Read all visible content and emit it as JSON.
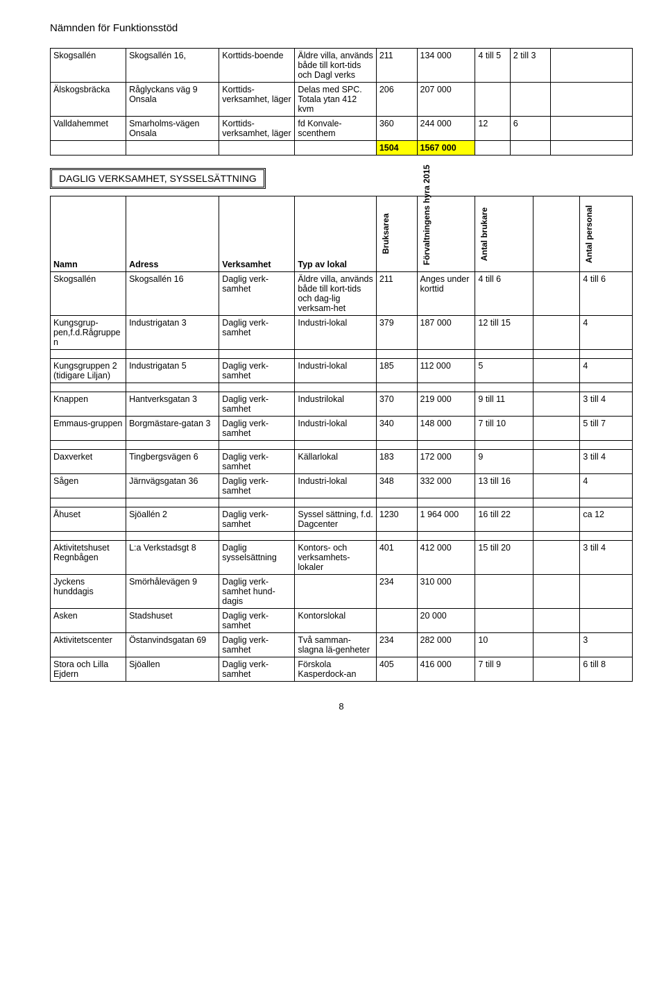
{
  "pageTitle": "Nämnden för Funktionsstöd",
  "pageNumber": "8",
  "colors": {
    "highlight": "#ffff00"
  },
  "table1": {
    "rows": [
      {
        "c0": "Skogsallén",
        "c1": "Skogsallén 16,",
        "c2": "Korttids-boende",
        "c3": "Äldre villa, används både till kort-tids och Dagl verks",
        "c4": "211",
        "c5": "134 000",
        "c6": "4 till 5",
        "c7": "2 till 3",
        "c8": ""
      },
      {
        "c0": "Älskogsbräcka",
        "c1": "Råglyckans väg 9 Onsala",
        "c2": "Korttids-verksamhet, läger",
        "c3": "Delas med SPC. Totala ytan 412 kvm",
        "c4": "206",
        "c5": "207 000",
        "c6": "",
        "c7": "",
        "c8": ""
      },
      {
        "c0": "Valldahemmet",
        "c1": "Smarholms-vägen Onsala",
        "c2": "Korttids-verksamhet, läger",
        "c3": "fd Konvale-scenthem",
        "c4": "360",
        "c5": "244 000",
        "c6": "12",
        "c7": "6",
        "c8": ""
      }
    ],
    "totals": {
      "c4": "1504",
      "c5": "1567 000"
    }
  },
  "sectionTitle": "DAGLIG VERKSAMHET, SYSSELSÄTTNING",
  "table2": {
    "headers": {
      "namn": "Namn",
      "adress": "Adress",
      "verksamhet": "Verksamhet",
      "typ": "Typ av lokal",
      "bruksarea": "Bruksarea",
      "hyra": "Förvaltningens hyra 2015",
      "brukare": "Antal brukare",
      "personal": "Antal personal"
    },
    "groups": [
      [
        {
          "c0": "Skogsallén",
          "c1": "Skogsallén 16",
          "c2": "Daglig verk-samhet",
          "c3": "Äldre villa, används både till kort-tids och dag-lig verksam-het",
          "c4": "211",
          "c5": "Anges under korttid",
          "c6": "4 till 6",
          "c7": "",
          "c8": "4 till 6"
        },
        {
          "c0": "Kungsgrup-pen,f.d.Rågruppen",
          "c1": "Industrigatan 3",
          "c2": "Daglig verk-samhet",
          "c3": "Industri-lokal",
          "c4": "379",
          "c5": "187 000",
          "c6": "12 till 15",
          "c7": "",
          "c8": "4"
        }
      ],
      [
        {
          "c0": "Kungsgruppen 2 (tidigare Liljan)",
          "c1": "Industrigatan 5",
          "c2": "Daglig verk-samhet",
          "c3": "Industri-lokal",
          "c4": "185",
          "c5": "112 000",
          "c6": "5",
          "c7": "",
          "c8": "4"
        }
      ],
      [
        {
          "c0": "Knappen",
          "c1": "Hantverksgatan 3",
          "c2": "Daglig verk-samhet",
          "c3": "Industrilokal",
          "c4": "370",
          "c5": "219 000",
          "c6": "9 till 11",
          "c7": "",
          "c8": "3 till 4"
        },
        {
          "c0": "Emmaus-gruppen",
          "c1": "Borgmästare-gatan 3",
          "c2": "Daglig verk-samhet",
          "c3": "Industri-lokal",
          "c4": "340",
          "c5": "148 000",
          "c6": "7 till 10",
          "c7": "",
          "c8": "5 till 7"
        }
      ],
      [
        {
          "c0": "Daxverket",
          "c1": "Tingbergsvägen 6",
          "c2": "Daglig verk-samhet",
          "c3": "Källarlokal",
          "c4": "183",
          "c5": "172 000",
          "c6": "9",
          "c7": "",
          "c8": "3 till 4"
        },
        {
          "c0": "Sågen",
          "c1": "Järnvägsgatan 36",
          "c2": "Daglig verk-samhet",
          "c3": "Industri-lokal",
          "c4": "348",
          "c5": "332 000",
          "c6": "13 till 16",
          "c7": "",
          "c8": "4"
        }
      ],
      [
        {
          "c0": "Åhuset",
          "c1": "Sjöallén 2",
          "c2": "Daglig verk-samhet",
          "c3": "Syssel sättning, f.d. Dagcenter",
          "c4": "1230",
          "c5": "1 964 000",
          "c6": "16 till 22",
          "c7": "",
          "c8": "ca 12"
        }
      ],
      [
        {
          "c0": "Aktivitetshuset Regnbågen",
          "c1": "L:a Verkstadsgt 8",
          "c2": "Daglig sysselsättning",
          "c3": "Kontors- och verksamhets-lokaler",
          "c4": "401",
          "c5": "412 000",
          "c6": "15 till 20",
          "c7": "",
          "c8": "3 till 4"
        },
        {
          "c0": "Jyckens hunddagis",
          "c1": "Smörhålevägen 9",
          "c2": "Daglig verk-samhet hund-dagis",
          "c3": "",
          "c4": "234",
          "c5": "310 000",
          "c6": "",
          "c7": "",
          "c8": ""
        },
        {
          "c0": "Asken",
          "c1": "Stadshuset",
          "c2": "Daglig verk-samhet",
          "c3": "Kontorslokal",
          "c4": "",
          "c5": "20 000",
          "c6": "",
          "c7": "",
          "c8": ""
        },
        {
          "c0": "Aktivitetscenter",
          "c1": "Östanvindsgatan 69",
          "c2": "Daglig verk-samhet",
          "c3": "Två samman-slagna lä-genheter",
          "c4": "234",
          "c5": "282 000",
          "c6": "10",
          "c7": "",
          "c8": "3"
        },
        {
          "c0": "Stora och Lilla Ejdern",
          "c1": "Sjöallen",
          "c2": "Daglig verk-samhet",
          "c3": "Förskola Kasperdock-an",
          "c4": "405",
          "c5": "416 000",
          "c6": "7 till 9",
          "c7": "",
          "c8": "6 till 8"
        }
      ]
    ]
  }
}
